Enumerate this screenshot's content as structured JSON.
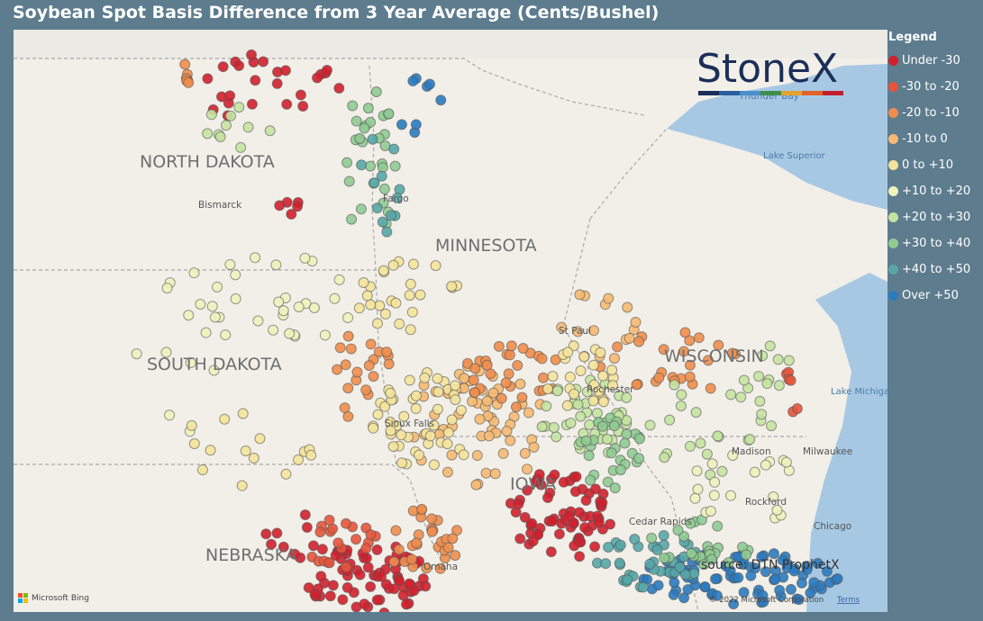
{
  "header": {
    "title": "Soybean Spot Basis Difference from 3 Year Average (Cents/Bushel)"
  },
  "legend": {
    "title": "Legend",
    "items": [
      {
        "label": "Under -30",
        "color": "#d0202c"
      },
      {
        "label": "-30 to -20",
        "color": "#e5553b"
      },
      {
        "label": "-20 to -10",
        "color": "#f08d4c"
      },
      {
        "label": "-10 to 0",
        "color": "#f6b972"
      },
      {
        "label": "0 to +10",
        "color": "#f4e39b"
      },
      {
        "label": "+10 to +20",
        "color": "#eef2bb"
      },
      {
        "label": "+20 to +30",
        "color": "#c4e3a1"
      },
      {
        "label": "+30 to +40",
        "color": "#8fcb91"
      },
      {
        "label": "+40 to +50",
        "color": "#57a7a9"
      },
      {
        "label": "Over +50",
        "color": "#2b7bc0"
      }
    ]
  },
  "map": {
    "states": [
      "NORTH DAKOTA",
      "SOUTH DAKOTA",
      "MINNESOTA",
      "WISCONSIN",
      "NEBRASKA",
      "IOWA"
    ],
    "places": [
      "Bismarck",
      "Fargo",
      "St Paul",
      "Rochester",
      "Sioux Falls",
      "Madison",
      "Milwaukee",
      "Rockford",
      "Chicago",
      "Cedar Rapids",
      "Omaha",
      "Thunder Bay",
      "Lake Superior",
      "Lake Michigan"
    ],
    "logo": "StoneX",
    "source": "source: DTN ProphetX",
    "attribution": {
      "bing": "Microsoft Bing",
      "copyright": "© 2022 Microsoft Corporation",
      "terms": "Terms"
    }
  }
}
